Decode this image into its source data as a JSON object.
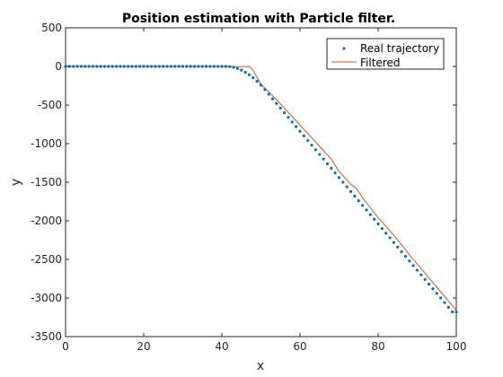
{
  "chart_data": {
    "type": "line",
    "title": "Position estimation with Particle filter.",
    "xlabel": "x",
    "ylabel": "y",
    "xlim": [
      0,
      100
    ],
    "ylim": [
      -3500,
      500
    ],
    "xticks": [
      "0",
      "20",
      "40",
      "60",
      "80",
      "100"
    ],
    "yticks": [
      "500",
      "0",
      "-500",
      "-1000",
      "-1500",
      "-2000",
      "-2500",
      "-3000",
      "-3500"
    ],
    "grid": false,
    "legend_position": "top-right",
    "colors": {
      "real": "#0072BD",
      "filtered": "#D95319",
      "axis": "#262626"
    },
    "series": [
      {
        "name": "Real trajectory",
        "style": "dots",
        "x": [
          0,
          1,
          2,
          3,
          4,
          5,
          6,
          7,
          8,
          9,
          10,
          11,
          12,
          13,
          14,
          15,
          16,
          17,
          18,
          19,
          20,
          21,
          22,
          23,
          24,
          25,
          26,
          27,
          28,
          29,
          30,
          31,
          32,
          33,
          34,
          35,
          36,
          37,
          38,
          39,
          40,
          41,
          42,
          43,
          44,
          45,
          46,
          47,
          48,
          49,
          50,
          51,
          52,
          53,
          54,
          55,
          56,
          57,
          58,
          59,
          60,
          61,
          62,
          63,
          64,
          65,
          66,
          67,
          68,
          69,
          70,
          71,
          72,
          73,
          74,
          75,
          76,
          77,
          78,
          79,
          80,
          81,
          82,
          83,
          84,
          85,
          86,
          87,
          88,
          89,
          90,
          91,
          92,
          93,
          94,
          95,
          96,
          97,
          98,
          99,
          100
        ],
        "y": [
          0,
          0,
          0,
          0,
          0,
          0,
          0,
          0,
          0,
          0,
          0,
          0,
          0,
          0,
          0,
          0,
          0,
          0,
          0,
          0,
          0,
          0,
          0,
          0,
          0,
          0,
          0,
          0,
          0,
          0,
          0,
          0,
          0,
          0,
          0,
          0,
          0,
          0,
          0,
          0,
          0,
          0,
          -3,
          -12,
          -27,
          -48,
          -75,
          -108,
          -147,
          -192,
          -243,
          -300,
          -360,
          -420,
          -480,
          -540,
          -600,
          -660,
          -720,
          -780,
          -840,
          -900,
          -960,
          -1020,
          -1080,
          -1140,
          -1200,
          -1260,
          -1320,
          -1380,
          -1440,
          -1500,
          -1560,
          -1620,
          -1680,
          -1740,
          -1800,
          -1860,
          -1920,
          -1980,
          -2040,
          -2100,
          -2160,
          -2220,
          -2280,
          -2340,
          -2400,
          -2460,
          -2520,
          -2580,
          -2640,
          -2700,
          -2760,
          -2820,
          -2880,
          -2940,
          -3000,
          -3060,
          -3120,
          -3180,
          -3180
        ]
      },
      {
        "name": "Filtered",
        "style": "line",
        "x": [
          0,
          10,
          20,
          30,
          40,
          44,
          47,
          48,
          49,
          50,
          52,
          54,
          56,
          58,
          60,
          62,
          64,
          66,
          68,
          70,
          72,
          73,
          74,
          75,
          76,
          78,
          80,
          82,
          84,
          86,
          88,
          90,
          92,
          94,
          96,
          98,
          100
        ],
        "y": [
          0,
          0,
          0,
          0,
          0,
          -5,
          0,
          -50,
          -140,
          -230,
          -330,
          -430,
          -540,
          -650,
          -760,
          -870,
          -980,
          -1090,
          -1200,
          -1360,
          -1470,
          -1530,
          -1560,
          -1620,
          -1700,
          -1830,
          -1960,
          -2070,
          -2190,
          -2310,
          -2440,
          -2560,
          -2680,
          -2800,
          -2920,
          -3040,
          -3160
        ]
      }
    ]
  }
}
